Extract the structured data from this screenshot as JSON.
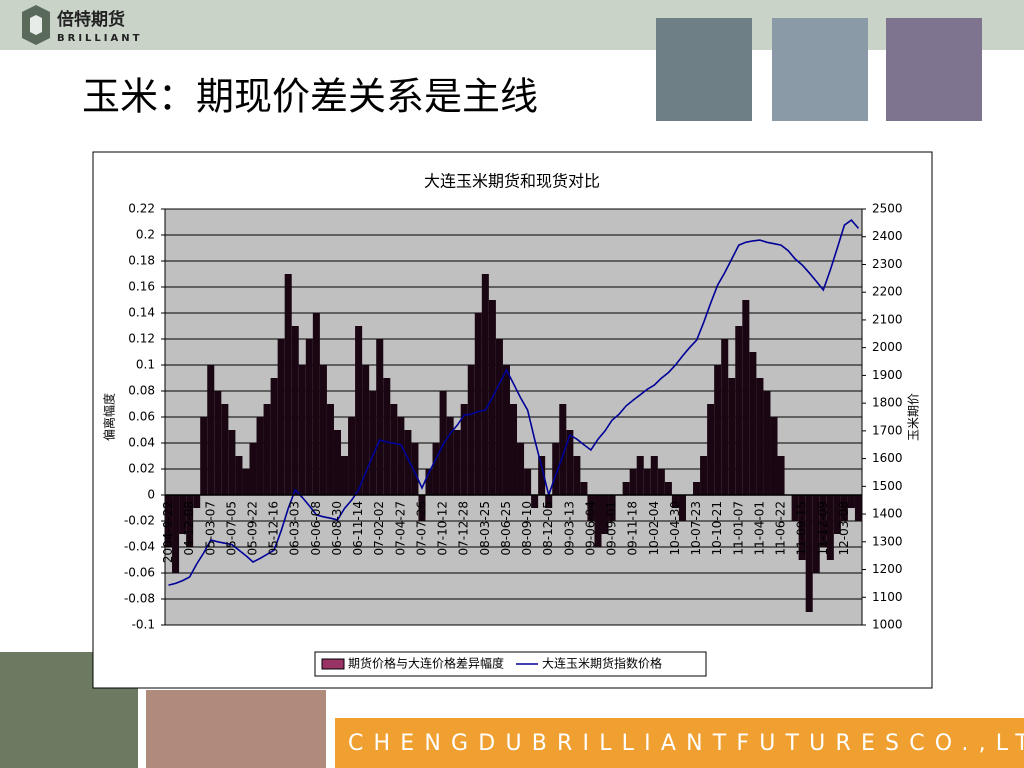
{
  "slide": {
    "logo_cn": "倍特期货",
    "logo_en": "BRILLIANT",
    "title": "玉米：期现价差关系是主线",
    "footer": "CHENGDUBRILLIANTFUTURESCO.,LTD."
  },
  "chart_data": {
    "type": "bar_line",
    "title": "大连玉米期货和现货对比",
    "ylabel": "偏离幅度",
    "y2label": "玉米期价",
    "categories": [
      "2004-9-22",
      null,
      null,
      "04-12-08",
      null,
      null,
      "05-03-07",
      null,
      null,
      "05-07-05",
      null,
      null,
      "05-09-22",
      null,
      null,
      "05-12-16",
      null,
      null,
      "06-03-03",
      null,
      null,
      "06-06-08",
      null,
      null,
      "06-08-30",
      null,
      null,
      "06-11-14",
      null,
      null,
      "07-02-02",
      null,
      null,
      "07-04-27",
      null,
      null,
      "07-07-26",
      null,
      null,
      "07-10-12",
      null,
      null,
      "07-12-28",
      null,
      null,
      "08-03-25",
      null,
      null,
      "08-06-25",
      null,
      null,
      "08-09-10",
      null,
      null,
      "08-12-05",
      null,
      null,
      "09-03-13",
      null,
      null,
      "09-06-04",
      null,
      null,
      "09-09-01",
      null,
      null,
      "09-11-18",
      null,
      null,
      "10-02-04",
      null,
      null,
      "10-04-30",
      null,
      null,
      "10-07-23",
      null,
      null,
      "10-10-21",
      null,
      null,
      "11-01-07",
      null,
      null,
      "11-04-01",
      null,
      null,
      "11-06-22",
      null,
      null,
      "11-09-15",
      null,
      null,
      "11-12-09",
      null,
      null,
      "12-03-08",
      null,
      null
    ],
    "series": [
      {
        "name": "期货价格与大连价格差异幅度",
        "type": "bar",
        "color": "#1a0612",
        "legend_color": "#993366",
        "values": [
          -0.04,
          -0.06,
          -0.03,
          -0.04,
          -0.01,
          0.06,
          0.1,
          0.08,
          0.07,
          0.05,
          0.03,
          0.02,
          0.04,
          0.06,
          0.07,
          0.09,
          0.12,
          0.17,
          0.13,
          0.1,
          0.12,
          0.14,
          0.1,
          0.07,
          0.05,
          0.03,
          0.06,
          0.13,
          0.1,
          0.08,
          0.12,
          0.09,
          0.07,
          0.06,
          0.05,
          0.04,
          -0.02,
          0.02,
          0.04,
          0.08,
          0.06,
          0.05,
          0.07,
          0.1,
          0.14,
          0.17,
          0.15,
          0.12,
          0.1,
          0.07,
          0.04,
          0.02,
          -0.01,
          0.03,
          -0.01,
          0.04,
          0.07,
          0.05,
          0.03,
          0.01,
          -0.02,
          -0.04,
          -0.03,
          -0.02,
          0,
          0.01,
          0.02,
          0.03,
          0.02,
          0.03,
          0.02,
          0.01,
          -0.01,
          -0.02,
          0,
          0.01,
          0.03,
          0.07,
          0.1,
          0.12,
          0.09,
          0.13,
          0.15,
          0.11,
          0.09,
          0.08,
          0.06,
          0.03,
          0,
          -0.02,
          -0.05,
          -0.09,
          -0.06,
          -0.04,
          -0.05,
          -0.03,
          -0.02,
          -0.01,
          -0.02
        ]
      },
      {
        "name": "大连玉米期货指数价格",
        "type": "line",
        "axis": "y2",
        "color": "#000099",
        "values": [
          1144,
          1150,
          1160,
          1173,
          1220,
          1260,
          1306,
          1300,
          1295,
          1290,
          1270,
          1250,
          1227,
          1240,
          1255,
          1270,
          1340,
          1420,
          1487,
          1460,
          1430,
          1397,
          1390,
          1385,
          1379,
          1420,
          1450,
          1487,
          1550,
          1610,
          1667,
          1660,
          1655,
          1650,
          1600,
          1550,
          1494,
          1550,
          1600,
          1650,
          1690,
          1720,
          1757,
          1760,
          1770,
          1775,
          1820,
          1870,
          1920,
          1870,
          1820,
          1775,
          1670,
          1570,
          1469,
          1540,
          1610,
          1685,
          1670,
          1650,
          1631,
          1670,
          1700,
          1739,
          1760,
          1790,
          1811,
          1830,
          1850,
          1865,
          1890,
          1910,
          1937,
          1970,
          2000,
          2027,
          2090,
          2160,
          2226,
          2270,
          2320,
          2370,
          2380,
          2385,
          2388,
          2380,
          2375,
          2370,
          2350,
          2320,
          2298,
          2270,
          2240,
          2208,
          2280,
          2360,
          2442,
          2460,
          2430
        ]
      }
    ],
    "ylim": [
      -0.1,
      0.22
    ],
    "yticks": [
      -0.1,
      -0.08,
      -0.06,
      -0.04,
      -0.02,
      0,
      0.02,
      0.04,
      0.06,
      0.08,
      0.1,
      0.12,
      0.14,
      0.16,
      0.18,
      0.2,
      0.22
    ],
    "y2lim": [
      1000,
      2500
    ],
    "y2ticks": [
      1000,
      1100,
      1200,
      1300,
      1400,
      1500,
      1600,
      1700,
      1800,
      1900,
      2000,
      2100,
      2200,
      2300,
      2400,
      2500
    ],
    "grid": true,
    "legend": "bottom"
  }
}
